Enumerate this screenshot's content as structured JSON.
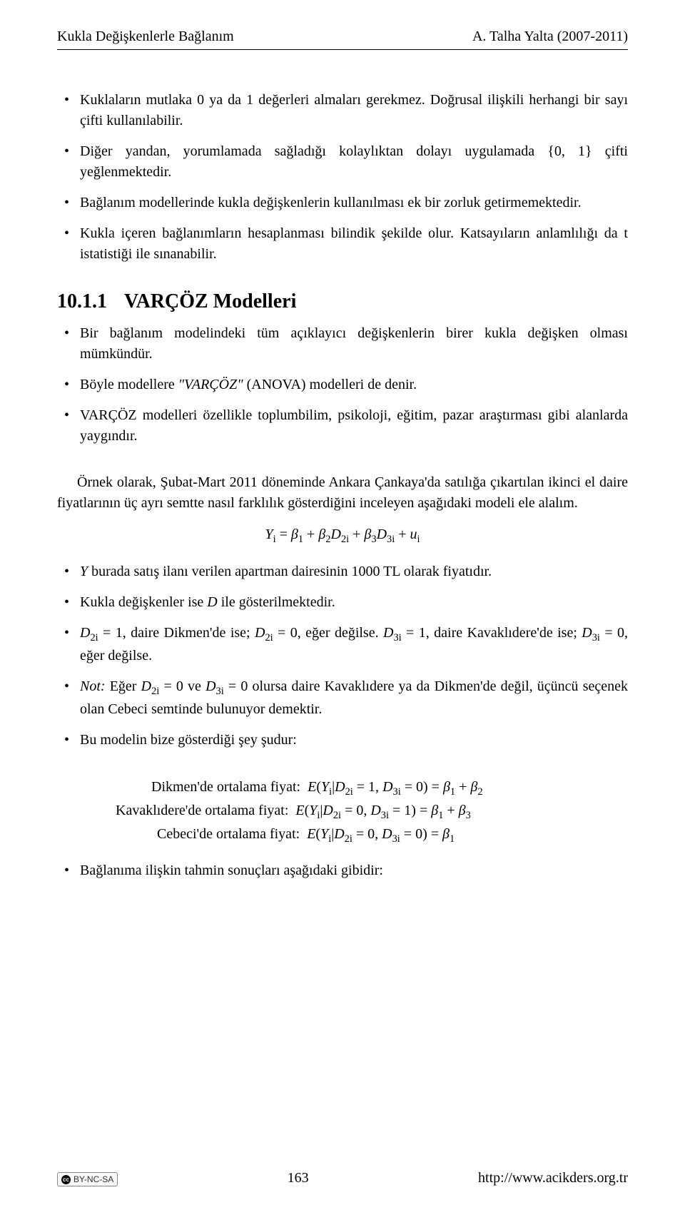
{
  "header": {
    "left": "Kukla Değişkenlerle Bağlanım",
    "right": "A. Talha Yalta (2007-2011)"
  },
  "bullets_top": [
    "Kuklaların mutlaka 0 ya da 1 değerleri almaları gerekmez. Doğrusal ilişkili herhangi bir sayı çifti kullanılabilir.",
    "Diğer yandan, yorumlamada sağladığı kolaylıktan dolayı uygulamada {0, 1} çifti yeğlenmektedir.",
    "Bağlanım modellerinde kukla değişkenlerin kullanılması ek bir zorluk getirmemektedir.",
    "Kukla içeren bağlanımların hesaplanması bilindik şekilde olur. Katsayıların anlamlılığı da t istatistiği ile sınanabilir."
  ],
  "section": {
    "number": "10.1.1",
    "title": "VARÇÖZ Modelleri"
  },
  "bullets_varcoz": [
    "Bir bağlanım modelindeki tüm açıklayıcı değişkenlerin birer kukla değişken olması mümkündür.",
    "Böyle modellere \"VARÇÖZ\" (ANOVA) modelleri de denir.",
    "VARÇÖZ modelleri özellikle toplumbilim, psikoloji, eğitim, pazar araştırması gibi alanlarda yaygındır."
  ],
  "para_example": "Örnek olarak, Şubat-Mart 2011 döneminde Ankara Çankaya'da satılığa çıkartılan ikinci el daire fiyatlarının üç ayrı semtte nasıl farklılık gösterdiğini inceleyen aşağıdaki modeli ele alalım.",
  "equation": "Yᵢ = β₁ + β₂D₂ᵢ + β₃D₃ᵢ + uᵢ",
  "bullets_model": [
    {
      "html": "<span class=\"math\">Y</span> burada satış ilanı verilen apartman dairesinin 1000 TL olarak fiyatıdır."
    },
    {
      "html": "Kukla değişkenler ise <span class=\"math\">D</span> ile gösterilmektedir."
    },
    {
      "html": "<span class=\"math\">D<span class=\"sub\">2i</span></span> = 1, daire Dikmen'de ise; <span class=\"math\">D<span class=\"sub\">2i</span></span> = 0, eğer değilse. <span class=\"math\">D<span class=\"sub\">3i</span></span> = 1, daire Kavaklıdere'de ise; <span class=\"math\">D<span class=\"sub\">3i</span></span> = 0, eğer değilse."
    },
    {
      "html": "<span class=\"ital\">Not:</span> Eğer <span class=\"math\">D<span class=\"sub\">2i</span></span> = 0 ve <span class=\"math\">D<span class=\"sub\">3i</span></span> = 0 olursa daire Kavaklıdere ya da Dikmen'de değil, üçüncü seçenek olan Cebeci semtinde bulunuyor demektir."
    },
    {
      "html": "Bu modelin bize gösterdiği şey şudur:"
    }
  ],
  "means": [
    {
      "label": "Dikmen'de ortalama fiyat:",
      "rhs": "E(Yᵢ|D₂ᵢ = 1, D₃ᵢ = 0) = β₁ + β₂"
    },
    {
      "label": "Kavaklıdere'de ortalama fiyat:",
      "rhs": "E(Yᵢ|D₂ᵢ = 0, D₃ᵢ = 1) = β₁ + β₃"
    },
    {
      "label": "Cebeci'de ortalama fiyat:",
      "rhs": "E(Yᵢ|D₂ᵢ = 0, D₃ᵢ = 0) = β₁"
    }
  ],
  "bullets_bottom": [
    "Bağlanıma ilişkin tahmin sonuçları aşağıdaki gibidir:"
  ],
  "footer": {
    "cc_label": "BY-NC-SA",
    "page_number": "163",
    "url": "http://www.acikders.org.tr"
  }
}
